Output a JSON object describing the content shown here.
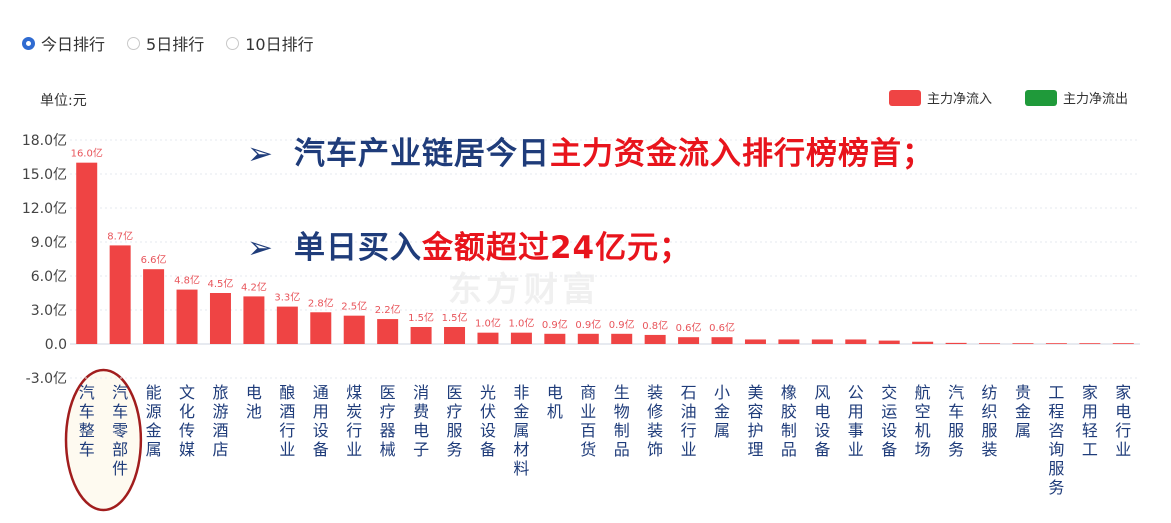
{
  "tabs": [
    {
      "label": "今日排行",
      "checked": true
    },
    {
      "label": "5日排行",
      "checked": false
    },
    {
      "label": "10日排行",
      "checked": false
    }
  ],
  "unit_label": "单位:元",
  "legend": [
    {
      "label": "主力净流入",
      "color": "#ef4444"
    },
    {
      "label": "主力净流出",
      "color": "#1f9a3a"
    }
  ],
  "callouts": [
    {
      "arrow": "➢",
      "parts": [
        {
          "text": "汽车产业链居今日",
          "color": "navy"
        },
        {
          "text": "主力资金流入排行榜榜首；",
          "color": "red"
        }
      ]
    },
    {
      "arrow": "➢",
      "parts": [
        {
          "text": "单日买入",
          "color": "navy"
        },
        {
          "text": "金额超过24亿元；",
          "color": "red"
        }
      ]
    }
  ],
  "watermark": "东方财富",
  "chart_data": {
    "type": "bar",
    "ylim": [
      -3.0,
      18.0
    ],
    "yticks": [
      18.0,
      15.0,
      12.0,
      9.0,
      6.0,
      3.0,
      0.0,
      -3.0
    ],
    "ytick_labels": [
      "18.0亿",
      "15.0亿",
      "12.0亿",
      "9.0亿",
      "6.0亿",
      "3.0亿",
      "0.0",
      "-3.0亿"
    ],
    "grid": true,
    "categories": [
      "汽车整车",
      "汽车零部件",
      "能源金属",
      "文化传媒",
      "旅游酒店",
      "电池",
      "酿酒行业",
      "通用设备",
      "煤炭行业",
      "医疗器械",
      "消费电子",
      "医疗服务",
      "光伏设备",
      "非金属材料",
      "电机",
      "商业百货",
      "生物制品",
      "装修装饰",
      "石油行业",
      "小金属",
      "美容护理",
      "橡胶制品",
      "风电设备",
      "公用事业",
      "交运设备",
      "航空机场",
      "汽车服务",
      "纺织服装",
      "贵金属",
      "工程咨询服务",
      "家用轻工",
      "家电行业"
    ],
    "values": [
      16.0,
      8.7,
      6.6,
      4.8,
      4.5,
      4.2,
      3.3,
      2.8,
      2.5,
      2.2,
      1.5,
      1.5,
      1.0,
      1.0,
      0.9,
      0.9,
      0.9,
      0.8,
      0.6,
      0.6,
      0.4,
      0.4,
      0.4,
      0.4,
      0.3,
      0.2,
      0.1,
      0.05,
      0.05,
      0.03,
      0.03,
      0.03
    ],
    "data_labels": [
      "16.0亿",
      "8.7亿",
      "6.6亿",
      "4.8亿",
      "4.5亿",
      "4.2亿",
      "3.3亿",
      "2.8亿",
      "2.5亿",
      "2.2亿",
      "1.5亿",
      "1.5亿",
      "1.0亿",
      "1.0亿",
      "0.9亿",
      "0.9亿",
      "0.9亿",
      "0.8亿",
      "0.6亿",
      "0.6亿",
      "",
      "",
      "",
      "",
      "",
      "",
      "",
      "",
      "",
      "",
      "",
      ""
    ],
    "highlighted_categories": [
      "汽车整车",
      "汽车零部件"
    ]
  }
}
